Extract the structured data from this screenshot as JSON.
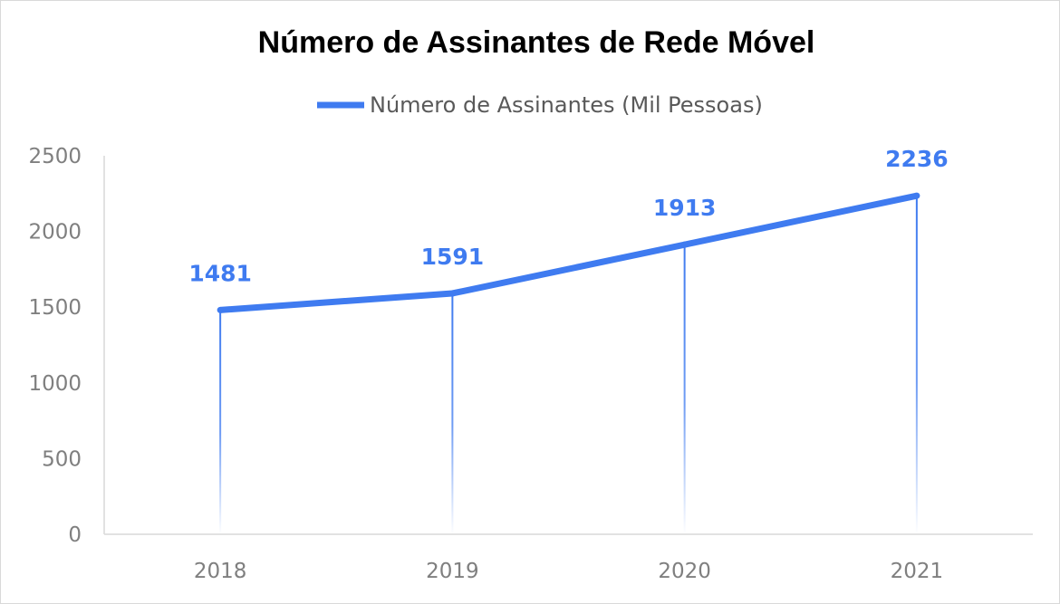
{
  "chart_data": {
    "type": "line",
    "title": "Número de Assinantes de Rede Móvel",
    "categories": [
      "2018",
      "2019",
      "2020",
      "2021"
    ],
    "series": [
      {
        "name": "Número de Assinantes (Mil Pessoas)",
        "values": [
          1481,
          1591,
          1913,
          2236
        ]
      }
    ],
    "yticks": [
      "0",
      "500",
      "1000",
      "1500",
      "2000",
      "2500"
    ],
    "ylim": [
      0,
      2500
    ],
    "xlabel": "",
    "ylabel": "",
    "legend_position": "top",
    "data_labels": [
      "1481",
      "1591",
      "1913",
      "2236"
    ],
    "colors": {
      "series": "#3f7bf0",
      "axis": "#d9d9d9",
      "tick_text": "#7f7f7f"
    }
  }
}
